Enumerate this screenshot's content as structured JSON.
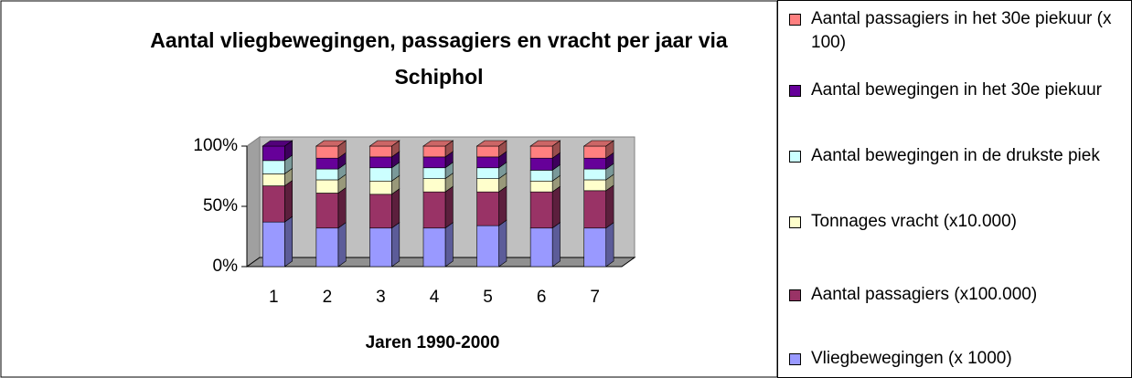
{
  "chart_data": {
    "type": "bar3d_stacked_percent",
    "title": "Aantal vliegbewegingen, passagiers en vracht per jaar via Schiphol",
    "x_label": "Jaren 1990-2000",
    "categories": [
      "1",
      "2",
      "3",
      "4",
      "5",
      "6",
      "7"
    ],
    "series": [
      {
        "name": "Vliegbewegingen (x 1000)",
        "color": "#9999ff",
        "values": [
          37,
          32,
          32,
          32,
          34,
          32,
          32
        ]
      },
      {
        "name": "Aantal passagiers (x100.000)",
        "color": "#993366",
        "values": [
          30,
          29,
          28,
          30,
          28,
          30,
          31
        ]
      },
      {
        "name": "Tonnages vracht (x10.000)",
        "color": "#ffffcc",
        "values": [
          10,
          11,
          11,
          11,
          11,
          9,
          9
        ]
      },
      {
        "name": "Aantal bewegingen in de drukste piek",
        "color": "#ccffff",
        "values": [
          11,
          9,
          11,
          9,
          9,
          9,
          9
        ]
      },
      {
        "name": "Aantal bewegingen in het 30e piekuur",
        "color": "#660099",
        "values": [
          12,
          9,
          9,
          9,
          9,
          10,
          9
        ]
      },
      {
        "name": "Aantal passagiers in het 30e piekuur (x 100)",
        "color": "#ff8080",
        "values": [
          0,
          10,
          9,
          9,
          9,
          10,
          10
        ]
      }
    ],
    "ylim": [
      0,
      100
    ],
    "yticks": [
      {
        "value": 0,
        "label": "0%"
      },
      {
        "value": 50,
        "label": "50%"
      },
      {
        "value": 100,
        "label": "100%"
      }
    ]
  }
}
